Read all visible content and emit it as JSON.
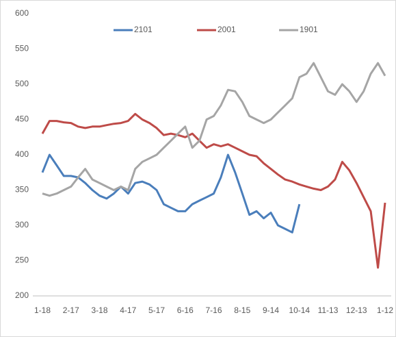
{
  "chart_data": {
    "type": "line",
    "categories": [
      "1-18",
      null,
      null,
      null,
      "2-17",
      null,
      null,
      null,
      "3-18",
      null,
      null,
      null,
      "4-17",
      null,
      null,
      null,
      "5-17",
      null,
      null,
      null,
      "6-16",
      null,
      null,
      null,
      "7-16",
      null,
      null,
      null,
      "8-15",
      null,
      null,
      null,
      "9-14",
      null,
      null,
      null,
      "10-14",
      null,
      null,
      null,
      "11-13",
      null,
      null,
      null,
      "12-13",
      null,
      null,
      null,
      "1-12"
    ],
    "series": [
      {
        "name": "2101",
        "color": "#4a7ebb",
        "values": [
          375,
          400,
          385,
          370,
          370,
          368,
          360,
          350,
          342,
          338,
          345,
          355,
          345,
          360,
          362,
          358,
          350,
          330,
          325,
          320,
          320,
          330,
          335,
          340,
          345,
          368,
          400,
          375,
          345,
          315,
          320,
          310,
          318,
          300,
          295,
          290,
          330,
          null,
          null,
          null,
          null,
          null,
          null,
          null,
          null,
          null,
          null,
          null,
          null
        ]
      },
      {
        "name": "2001",
        "color": "#be4b48",
        "values": [
          430,
          448,
          448,
          446,
          445,
          440,
          438,
          440,
          440,
          442,
          444,
          445,
          448,
          458,
          450,
          445,
          438,
          428,
          430,
          428,
          425,
          430,
          420,
          410,
          415,
          412,
          415,
          410,
          405,
          400,
          398,
          388,
          380,
          372,
          365,
          362,
          358,
          355,
          352,
          350,
          355,
          365,
          390,
          378,
          360,
          340,
          320,
          240,
          332
        ]
      },
      {
        "name": "1901",
        "color": "#a5a5a5",
        "values": [
          345,
          342,
          345,
          350,
          355,
          368,
          380,
          365,
          360,
          355,
          350,
          355,
          350,
          380,
          390,
          395,
          400,
          410,
          420,
          430,
          440,
          410,
          420,
          450,
          455,
          470,
          492,
          490,
          475,
          455,
          450,
          445,
          450,
          460,
          470,
          480,
          510,
          515,
          530,
          510,
          490,
          485,
          500,
          490,
          475,
          490,
          515,
          530,
          512
        ]
      }
    ],
    "ylim": [
      200,
      600
    ],
    "yticks": [
      200,
      250,
      300,
      350,
      400,
      450,
      500,
      550,
      600
    ],
    "grid": false,
    "legend": "top"
  }
}
